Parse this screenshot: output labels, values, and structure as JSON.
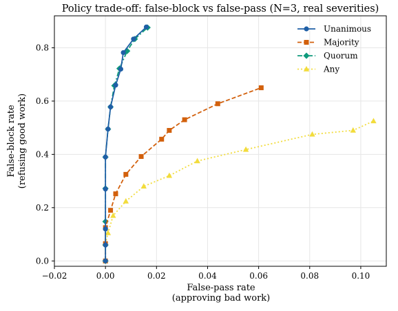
{
  "chart_data": {
    "type": "line",
    "title": "Policy trade-off: false-block vs false-pass (N=3, real severities)",
    "xlabel": [
      "False-pass rate",
      "(approving bad work)"
    ],
    "ylabel": [
      "False-block rate",
      "(refusing good work)"
    ],
    "xlim": [
      -0.02,
      0.11
    ],
    "ylim": [
      -0.02,
      0.92
    ],
    "xticks": [
      -0.02,
      0.0,
      0.02,
      0.04,
      0.06,
      0.08,
      0.1
    ],
    "xtick_labels": [
      "−0.02",
      "0.00",
      "0.02",
      "0.04",
      "0.06",
      "0.08",
      "0.10"
    ],
    "yticks": [
      0.0,
      0.2,
      0.4,
      0.6,
      0.8
    ],
    "ytick_labels": [
      "0.0",
      "0.2",
      "0.4",
      "0.6",
      "0.8"
    ],
    "grid": true,
    "legend_position": "top-right",
    "series": [
      {
        "name": "Unanimous",
        "color": "#1f5fa6",
        "marker": "circle",
        "line_style": "solid",
        "points": [
          [
            0.0,
            0.0
          ],
          [
            0.0,
            0.06
          ],
          [
            0.0,
            0.12
          ],
          [
            0.0,
            0.27
          ],
          [
            0.0,
            0.39
          ],
          [
            0.001,
            0.495
          ],
          [
            0.002,
            0.578
          ],
          [
            0.004,
            0.66
          ],
          [
            0.006,
            0.72
          ],
          [
            0.007,
            0.782
          ],
          [
            0.011,
            0.833
          ],
          [
            0.016,
            0.878
          ]
        ]
      },
      {
        "name": "Majority",
        "color": "#d2600c",
        "marker": "square",
        "line_style": "dashed",
        "points": [
          [
            0.0,
            0.0
          ],
          [
            0.0,
            0.065
          ],
          [
            0.0,
            0.125
          ],
          [
            0.002,
            0.19
          ],
          [
            0.004,
            0.252
          ],
          [
            0.008,
            0.325
          ],
          [
            0.014,
            0.392
          ],
          [
            0.022,
            0.457
          ],
          [
            0.025,
            0.49
          ],
          [
            0.031,
            0.53
          ],
          [
            0.044,
            0.59
          ],
          [
            0.061,
            0.65
          ]
        ]
      },
      {
        "name": "Quorum",
        "color": "#0e9a7c",
        "marker": "diamond",
        "line_style": "dashdot",
        "points": [
          [
            0.0,
            0.0
          ],
          [
            0.0,
            0.06
          ],
          [
            0.0,
            0.148
          ],
          [
            0.0,
            0.272
          ],
          [
            0.0,
            0.39
          ],
          [
            0.001,
            0.495
          ],
          [
            0.002,
            0.578
          ],
          [
            0.0035,
            0.658
          ],
          [
            0.0055,
            0.722
          ],
          [
            0.0085,
            0.788
          ],
          [
            0.0115,
            0.833
          ],
          [
            0.0165,
            0.876
          ]
        ]
      },
      {
        "name": "Any",
        "color": "#f2dc3c",
        "marker": "triangle",
        "line_style": "dotted",
        "points": [
          [
            0.0,
            0.0
          ],
          [
            0.0,
            0.065
          ],
          [
            0.001,
            0.105
          ],
          [
            0.003,
            0.17
          ],
          [
            0.008,
            0.224
          ],
          [
            0.015,
            0.28
          ],
          [
            0.025,
            0.32
          ],
          [
            0.036,
            0.375
          ],
          [
            0.055,
            0.418
          ],
          [
            0.081,
            0.475
          ],
          [
            0.097,
            0.49
          ],
          [
            0.105,
            0.525
          ]
        ]
      }
    ]
  }
}
